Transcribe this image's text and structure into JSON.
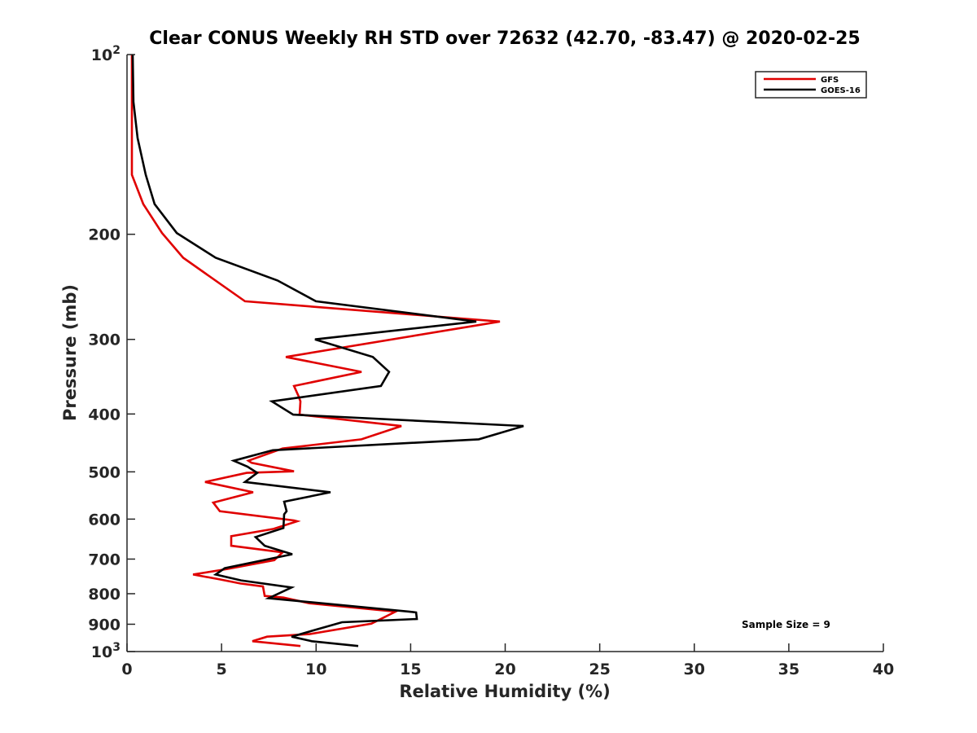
{
  "chart_data": {
    "type": "line",
    "title": "Clear CONUS Weekly RH STD over 72632 (42.70, -83.47) @ 2020-02-25",
    "xlabel": "Relative Humidity (%)",
    "ylabel": "Pressure (mb)",
    "xlim": [
      0,
      40
    ],
    "ylim": [
      100,
      1000
    ],
    "yscale": "log",
    "yreversed": true,
    "grid": false,
    "legend_position": "top-right",
    "xticks": [
      0,
      5,
      10,
      15,
      20,
      25,
      30,
      35,
      40
    ],
    "xtick_labels": [
      "0",
      "5",
      "10",
      "15",
      "20",
      "25",
      "30",
      "35",
      "40"
    ],
    "yticks": [
      {
        "value": 100,
        "base": "10",
        "exp": "2"
      },
      {
        "value": 200,
        "label": "200"
      },
      {
        "value": 300,
        "label": "300"
      },
      {
        "value": 400,
        "label": "400"
      },
      {
        "value": 500,
        "label": "500"
      },
      {
        "value": 600,
        "label": "600"
      },
      {
        "value": 700,
        "label": "700"
      },
      {
        "value": 800,
        "label": "800"
      },
      {
        "value": 900,
        "label": "900"
      },
      {
        "value": 1000,
        "base": "10",
        "exp": "3"
      }
    ],
    "annotation": "Sample Size = 9",
    "series": [
      {
        "name": "GFS",
        "color": "#e00000",
        "points": [
          [
            0.26,
            100
          ],
          [
            0.26,
            159
          ],
          [
            0.86,
            178
          ],
          [
            1.85,
            199
          ],
          [
            2.97,
            219
          ],
          [
            6.24,
            259
          ],
          [
            19.72,
            280
          ],
          [
            8.4,
            321
          ],
          [
            12.4,
            340
          ],
          [
            8.83,
            359
          ],
          [
            9.08,
            374
          ],
          [
            9.17,
            381
          ],
          [
            9.13,
            401
          ],
          [
            14.51,
            419
          ],
          [
            12.4,
            441
          ],
          [
            8.23,
            457
          ],
          [
            6.42,
            479
          ],
          [
            6.59,
            483
          ],
          [
            8.83,
            499
          ],
          [
            6.33,
            502
          ],
          [
            4.13,
            520
          ],
          [
            6.67,
            541
          ],
          [
            4.56,
            563
          ],
          [
            4.91,
            582
          ],
          [
            8.83,
            603
          ],
          [
            9.0,
            605
          ],
          [
            7.75,
            623
          ],
          [
            5.51,
            641
          ],
          [
            5.51,
            665
          ],
          [
            8.23,
            682
          ],
          [
            7.79,
            703
          ],
          [
            5.34,
            727
          ],
          [
            3.49,
            743
          ],
          [
            4.91,
            757
          ],
          [
            5.99,
            769
          ],
          [
            7.19,
            778
          ],
          [
            7.28,
            807
          ],
          [
            8.27,
            812
          ],
          [
            9.64,
            830
          ],
          [
            14.21,
            857
          ],
          [
            12.92,
            898
          ],
          [
            9.64,
            935
          ],
          [
            7.41,
            944
          ],
          [
            6.63,
            961
          ],
          [
            9.17,
            979
          ]
        ]
      },
      {
        "name": "GOES-16",
        "color": "#000000",
        "points": [
          [
            0.3,
            100
          ],
          [
            0.34,
            120
          ],
          [
            0.56,
            138
          ],
          [
            0.99,
            159
          ],
          [
            1.46,
            178
          ],
          [
            2.63,
            199
          ],
          [
            4.69,
            219
          ],
          [
            7.96,
            239
          ],
          [
            9.99,
            259
          ],
          [
            18.47,
            280
          ],
          [
            9.94,
            300
          ],
          [
            13.0,
            321
          ],
          [
            13.86,
            340
          ],
          [
            13.43,
            359
          ],
          [
            7.66,
            381
          ],
          [
            8.79,
            401
          ],
          [
            20.97,
            419
          ],
          [
            18.6,
            441
          ],
          [
            7.71,
            460
          ],
          [
            5.64,
            479
          ],
          [
            6.37,
            490
          ],
          [
            6.89,
            502
          ],
          [
            6.24,
            520
          ],
          [
            10.76,
            541
          ],
          [
            8.31,
            561
          ],
          [
            8.44,
            582
          ],
          [
            8.31,
            589
          ],
          [
            8.27,
            621
          ],
          [
            6.8,
            643
          ],
          [
            7.28,
            665
          ],
          [
            8.74,
            687
          ],
          [
            5.17,
            725
          ],
          [
            4.69,
            743
          ],
          [
            6.03,
            760
          ],
          [
            8.7,
            781
          ],
          [
            7.49,
            814
          ],
          [
            14.9,
            857
          ],
          [
            15.29,
            860
          ],
          [
            15.33,
            882
          ],
          [
            11.37,
            893
          ],
          [
            8.7,
            944
          ],
          [
            9.77,
            961
          ],
          [
            12.23,
            979
          ]
        ]
      }
    ]
  }
}
